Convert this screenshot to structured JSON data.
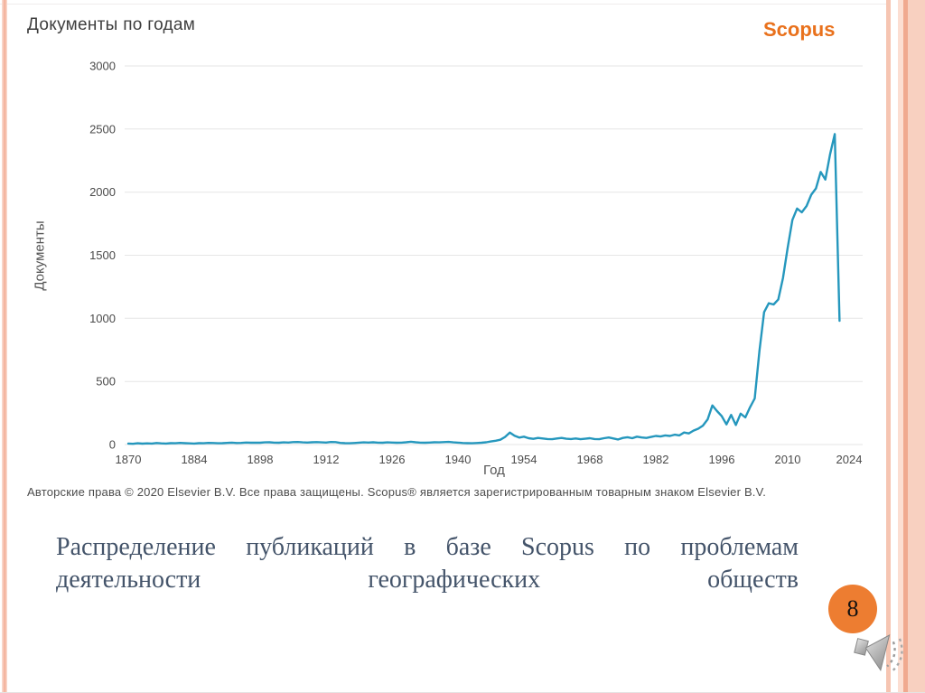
{
  "slide": {
    "page_number": "8",
    "caption": "Распределение публикаций в базе Scopus по проблемам деятельности географических обществ"
  },
  "chart": {
    "title": "Документы по годам",
    "brand": "Scopus",
    "copyright": "Авторские права © 2020 Elsevier B.V. Все права защищены. Scopus® является зарегистрированным товарным знаком Elsevier B.V."
  },
  "chart_data": {
    "type": "line",
    "title": "Документы по годам",
    "xlabel": "Год",
    "ylabel": "Документы",
    "xlim": [
      1870,
      2024
    ],
    "ylim": [
      0,
      3000
    ],
    "x_ticks": [
      1870,
      1884,
      1898,
      1912,
      1926,
      1940,
      1954,
      1968,
      1982,
      1996,
      2010,
      2024
    ],
    "y_ticks": [
      0,
      500,
      1000,
      1500,
      2000,
      2500,
      3000
    ],
    "grid": "horizontal",
    "grid_color": "#e6e6e6",
    "legend": "none",
    "series": [
      {
        "name": "Документы",
        "color": "#2597bd",
        "points": [
          [
            1870,
            8
          ],
          [
            1871,
            6
          ],
          [
            1872,
            10
          ],
          [
            1873,
            7
          ],
          [
            1874,
            9
          ],
          [
            1875,
            8
          ],
          [
            1876,
            12
          ],
          [
            1877,
            9
          ],
          [
            1878,
            8
          ],
          [
            1879,
            11
          ],
          [
            1880,
            10
          ],
          [
            1881,
            13
          ],
          [
            1882,
            11
          ],
          [
            1883,
            9
          ],
          [
            1884,
            8
          ],
          [
            1885,
            11
          ],
          [
            1886,
            10
          ],
          [
            1887,
            13
          ],
          [
            1888,
            12
          ],
          [
            1889,
            10
          ],
          [
            1890,
            11
          ],
          [
            1891,
            13
          ],
          [
            1892,
            15
          ],
          [
            1893,
            12
          ],
          [
            1894,
            13
          ],
          [
            1895,
            16
          ],
          [
            1896,
            14
          ],
          [
            1897,
            15
          ],
          [
            1898,
            14
          ],
          [
            1899,
            17
          ],
          [
            1900,
            18
          ],
          [
            1901,
            15
          ],
          [
            1902,
            14
          ],
          [
            1903,
            17
          ],
          [
            1904,
            16
          ],
          [
            1905,
            19
          ],
          [
            1906,
            20
          ],
          [
            1907,
            17
          ],
          [
            1908,
            16
          ],
          [
            1909,
            18
          ],
          [
            1910,
            19
          ],
          [
            1911,
            17
          ],
          [
            1912,
            16
          ],
          [
            1913,
            20
          ],
          [
            1914,
            19
          ],
          [
            1915,
            13
          ],
          [
            1916,
            11
          ],
          [
            1917,
            10
          ],
          [
            1918,
            12
          ],
          [
            1919,
            15
          ],
          [
            1920,
            17
          ],
          [
            1921,
            16
          ],
          [
            1922,
            18
          ],
          [
            1923,
            15
          ],
          [
            1924,
            14
          ],
          [
            1925,
            17
          ],
          [
            1926,
            16
          ],
          [
            1927,
            14
          ],
          [
            1928,
            15
          ],
          [
            1929,
            18
          ],
          [
            1930,
            22
          ],
          [
            1931,
            18
          ],
          [
            1932,
            15
          ],
          [
            1933,
            14
          ],
          [
            1934,
            16
          ],
          [
            1935,
            18
          ],
          [
            1936,
            17
          ],
          [
            1937,
            19
          ],
          [
            1938,
            21
          ],
          [
            1939,
            17
          ],
          [
            1940,
            15
          ],
          [
            1941,
            12
          ],
          [
            1942,
            11
          ],
          [
            1943,
            10
          ],
          [
            1944,
            12
          ],
          [
            1945,
            14
          ],
          [
            1946,
            18
          ],
          [
            1947,
            24
          ],
          [
            1948,
            30
          ],
          [
            1949,
            38
          ],
          [
            1950,
            60
          ],
          [
            1951,
            95
          ],
          [
            1952,
            70
          ],
          [
            1953,
            55
          ],
          [
            1954,
            62
          ],
          [
            1955,
            50
          ],
          [
            1956,
            45
          ],
          [
            1957,
            52
          ],
          [
            1958,
            48
          ],
          [
            1959,
            44
          ],
          [
            1960,
            42
          ],
          [
            1961,
            48
          ],
          [
            1962,
            52
          ],
          [
            1963,
            46
          ],
          [
            1964,
            44
          ],
          [
            1965,
            48
          ],
          [
            1966,
            42
          ],
          [
            1967,
            46
          ],
          [
            1968,
            50
          ],
          [
            1969,
            44
          ],
          [
            1970,
            42
          ],
          [
            1971,
            50
          ],
          [
            1972,
            56
          ],
          [
            1973,
            48
          ],
          [
            1974,
            40
          ],
          [
            1975,
            52
          ],
          [
            1976,
            58
          ],
          [
            1977,
            50
          ],
          [
            1978,
            62
          ],
          [
            1979,
            56
          ],
          [
            1980,
            52
          ],
          [
            1981,
            60
          ],
          [
            1982,
            68
          ],
          [
            1983,
            64
          ],
          [
            1984,
            72
          ],
          [
            1985,
            68
          ],
          [
            1986,
            78
          ],
          [
            1987,
            72
          ],
          [
            1988,
            95
          ],
          [
            1989,
            88
          ],
          [
            1990,
            110
          ],
          [
            1991,
            125
          ],
          [
            1992,
            150
          ],
          [
            1993,
            200
          ],
          [
            1994,
            310
          ],
          [
            1995,
            265
          ],
          [
            1996,
            225
          ],
          [
            1997,
            160
          ],
          [
            1998,
            235
          ],
          [
            1999,
            155
          ],
          [
            2000,
            245
          ],
          [
            2001,
            215
          ],
          [
            2002,
            295
          ],
          [
            2003,
            365
          ],
          [
            2004,
            740
          ],
          [
            2005,
            1050
          ],
          [
            2006,
            1120
          ],
          [
            2007,
            1110
          ],
          [
            2008,
            1150
          ],
          [
            2009,
            1320
          ],
          [
            2010,
            1560
          ],
          [
            2011,
            1780
          ],
          [
            2012,
            1870
          ],
          [
            2013,
            1840
          ],
          [
            2014,
            1890
          ],
          [
            2015,
            1980
          ],
          [
            2016,
            2030
          ],
          [
            2017,
            2160
          ],
          [
            2018,
            2100
          ],
          [
            2019,
            2300
          ],
          [
            2020,
            2460
          ],
          [
            2021,
            980
          ]
        ]
      }
    ]
  },
  "colors": {
    "line": "#2597bd",
    "scopus_orange": "#e9711c",
    "page_circle": "#ed7d31",
    "caption_text": "#44546a",
    "stripe_salmon": "#f2ae96"
  },
  "icons": {
    "speaker": "speaker-icon"
  }
}
